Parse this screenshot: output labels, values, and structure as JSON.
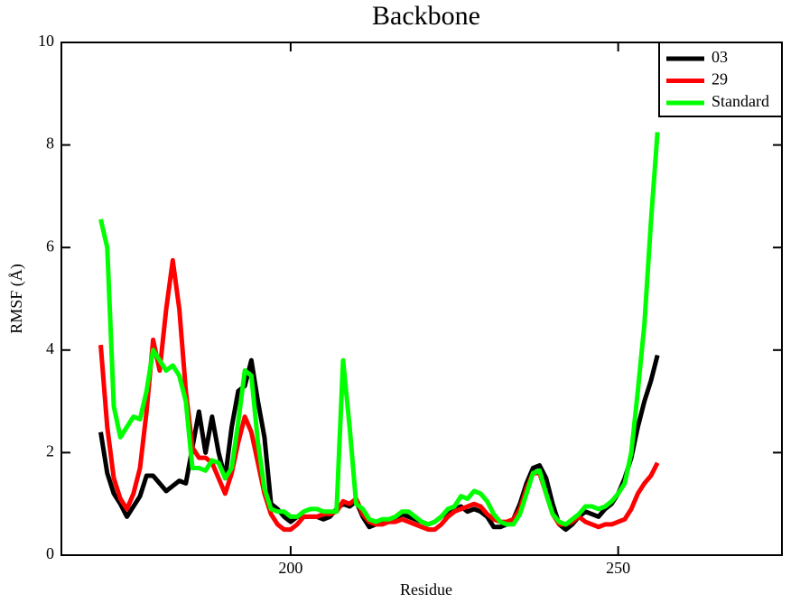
{
  "chart_data": {
    "type": "line",
    "title": "Backbone",
    "xlabel": "Residue",
    "ylabel": "RMSF (Å)",
    "xlim": [
      165,
      275
    ],
    "ylim": [
      0,
      10
    ],
    "xticks": [
      200,
      250
    ],
    "yticks": [
      0,
      2,
      4,
      6,
      8,
      10
    ],
    "legend": "upper right",
    "x": [
      171,
      172,
      173,
      174,
      175,
      176,
      177,
      178,
      179,
      180,
      181,
      182,
      183,
      184,
      185,
      186,
      187,
      188,
      189,
      190,
      191,
      192,
      193,
      194,
      195,
      196,
      197,
      198,
      199,
      200,
      201,
      202,
      203,
      204,
      205,
      206,
      207,
      208,
      209,
      210,
      211,
      212,
      213,
      214,
      215,
      216,
      217,
      218,
      219,
      220,
      221,
      222,
      223,
      224,
      225,
      226,
      227,
      228,
      229,
      230,
      231,
      232,
      233,
      234,
      235,
      236,
      237,
      238,
      239,
      240,
      241,
      242,
      243,
      244,
      245,
      246,
      247,
      248,
      249,
      250,
      251,
      252,
      253,
      254,
      255,
      256
    ],
    "series": [
      {
        "name": "03",
        "color": "#000000",
        "values": [
          2.4,
          1.6,
          1.2,
          1.0,
          0.75,
          0.95,
          1.15,
          1.55,
          1.55,
          1.4,
          1.25,
          1.35,
          1.45,
          1.4,
          2.1,
          2.8,
          2.0,
          2.7,
          2.0,
          1.5,
          2.5,
          3.2,
          3.3,
          3.8,
          3.0,
          2.3,
          1.0,
          0.9,
          0.75,
          0.65,
          0.75,
          0.75,
          0.75,
          0.75,
          0.7,
          0.75,
          0.9,
          1.0,
          0.95,
          1.05,
          0.75,
          0.55,
          0.6,
          0.65,
          0.65,
          0.7,
          0.8,
          0.75,
          0.7,
          0.65,
          0.6,
          0.65,
          0.75,
          0.85,
          0.9,
          0.95,
          0.85,
          0.9,
          0.85,
          0.75,
          0.55,
          0.55,
          0.6,
          0.7,
          1.0,
          1.4,
          1.7,
          1.75,
          1.5,
          1.0,
          0.6,
          0.5,
          0.6,
          0.75,
          0.85,
          0.8,
          0.75,
          0.9,
          1.0,
          1.2,
          1.5,
          1.9,
          2.5,
          3.0,
          3.4,
          3.9
        ]
      },
      {
        "name": "29",
        "color": "#ff0000",
        "values": [
          4.1,
          2.5,
          1.5,
          1.1,
          0.9,
          1.2,
          1.7,
          2.8,
          4.2,
          3.6,
          4.8,
          5.75,
          4.8,
          3.2,
          2.1,
          1.9,
          1.9,
          1.8,
          1.5,
          1.2,
          1.6,
          2.2,
          2.7,
          2.4,
          1.8,
          1.2,
          0.8,
          0.6,
          0.5,
          0.5,
          0.6,
          0.75,
          0.75,
          0.75,
          0.8,
          0.8,
          0.85,
          1.05,
          1.0,
          1.1,
          0.8,
          0.65,
          0.6,
          0.6,
          0.65,
          0.65,
          0.7,
          0.65,
          0.6,
          0.55,
          0.5,
          0.5,
          0.6,
          0.75,
          0.85,
          0.9,
          0.95,
          1.0,
          0.95,
          0.8,
          0.7,
          0.65,
          0.65,
          0.7,
          0.9,
          1.3,
          1.6,
          1.6,
          1.2,
          0.8,
          0.6,
          0.6,
          0.65,
          0.75,
          0.65,
          0.6,
          0.55,
          0.6,
          0.6,
          0.65,
          0.7,
          0.9,
          1.2,
          1.4,
          1.55,
          1.8
        ]
      },
      {
        "name": "Standard",
        "color": "#00ff00",
        "values": [
          6.55,
          6.0,
          2.9,
          2.3,
          2.5,
          2.7,
          2.65,
          3.2,
          4.0,
          3.8,
          3.6,
          3.7,
          3.5,
          3.0,
          1.7,
          1.7,
          1.65,
          1.85,
          1.8,
          1.5,
          1.7,
          2.6,
          3.6,
          3.5,
          2.2,
          1.3,
          0.9,
          0.85,
          0.85,
          0.75,
          0.75,
          0.85,
          0.9,
          0.9,
          0.85,
          0.85,
          0.85,
          3.8,
          2.5,
          1.0,
          0.9,
          0.7,
          0.65,
          0.7,
          0.7,
          0.75,
          0.85,
          0.85,
          0.75,
          0.65,
          0.6,
          0.65,
          0.75,
          0.9,
          0.95,
          1.15,
          1.1,
          1.25,
          1.2,
          1.05,
          0.8,
          0.65,
          0.6,
          0.6,
          0.8,
          1.2,
          1.6,
          1.65,
          1.2,
          0.8,
          0.65,
          0.6,
          0.7,
          0.8,
          0.95,
          0.95,
          0.9,
          0.95,
          1.05,
          1.2,
          1.4,
          2.0,
          3.2,
          4.5,
          6.5,
          8.25
        ]
      }
    ]
  }
}
